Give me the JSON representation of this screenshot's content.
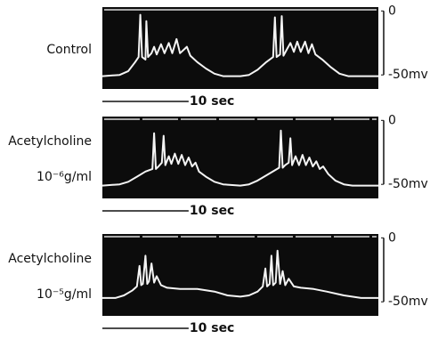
{
  "chart_data": [
    {
      "type": "line",
      "label": [
        "Control"
      ],
      "x": [
        0,
        2,
        3,
        3.8,
        4.2,
        4.4,
        4.6,
        5,
        5.1,
        5.3,
        5.7,
        6.0,
        6.3,
        6.8,
        7.2,
        7.7,
        8.1,
        8.6,
        9.0,
        9.5,
        9.8,
        10.2,
        11,
        12,
        13,
        14,
        16,
        17,
        18,
        19,
        19.8,
        20.0,
        20.2,
        20.6,
        20.8,
        21.0,
        21.4,
        21.8,
        22.2,
        22.6,
        23.0,
        23.5,
        23.9,
        24.3,
        24.7,
        25.5,
        26.5,
        27.5,
        28.5,
        32
      ],
      "series": [
        {
          "color": "#f4f4f4",
          "values": [
            -51,
            -50,
            -47,
            -40,
            -36,
            -3,
            -36,
            -38,
            -8,
            -36,
            -33,
            -28,
            -34,
            -26,
            -33,
            -25,
            -33,
            -22,
            -33,
            -30,
            -28,
            -35,
            -40,
            -45,
            -49,
            -51,
            -51,
            -50,
            -46,
            -40,
            -36,
            -5,
            -36,
            -34,
            -4,
            -35,
            -30,
            -25,
            -32,
            -24,
            -32,
            -24,
            -33,
            -26,
            -34,
            -38,
            -44,
            -49,
            -51,
            -51
          ]
        }
      ],
      "xlim": [
        0,
        32
      ],
      "ylim": [
        -61,
        3
      ],
      "yticks": [
        0,
        {
          "value": -50,
          "label": "-50mv"
        }
      ],
      "scale_bar": {
        "value": 10,
        "label": "10 sec"
      }
    },
    {
      "type": "line",
      "label": [
        "Acetylcholine",
        "10⁻⁶g/ml"
      ],
      "x": [
        0,
        2,
        3,
        4,
        5,
        5.8,
        6.0,
        6.2,
        6.5,
        6.9,
        7.1,
        7.3,
        7.7,
        8.0,
        8.4,
        8.8,
        9.2,
        9.6,
        10.0,
        10.4,
        10.8,
        11.2,
        12,
        13,
        14,
        16,
        17,
        18,
        19,
        20.0,
        20.5,
        20.7,
        20.9,
        21.2,
        21.6,
        21.8,
        22.0,
        22.4,
        22.8,
        23.2,
        23.6,
        24.0,
        24.4,
        24.8,
        25.2,
        25.6,
        26.2,
        27,
        28,
        29,
        32
      ],
      "series": [
        {
          "color": "#f4f4f4",
          "values": [
            -51,
            -50,
            -48,
            -44,
            -40,
            -38,
            -10,
            -38,
            -36,
            -33,
            -12,
            -35,
            -28,
            -34,
            -26,
            -34,
            -27,
            -35,
            -29,
            -36,
            -33,
            -40,
            -44,
            -48,
            -50,
            -51,
            -50,
            -47,
            -43,
            -39,
            -37,
            -8,
            -37,
            -35,
            -33,
            -14,
            -35,
            -28,
            -35,
            -27,
            -35,
            -29,
            -36,
            -32,
            -38,
            -36,
            -42,
            -47,
            -50,
            -51,
            -51
          ]
        }
      ],
      "xlim": [
        0,
        32
      ],
      "ylim": [
        -61,
        3
      ],
      "yticks": [
        0,
        {
          "value": -50,
          "label": "-50mv"
        }
      ],
      "scale_bar": {
        "value": 10,
        "label": "10 sec"
      }
    },
    {
      "type": "line",
      "label": [
        "Acetylcholine",
        "10⁻⁵g/ml"
      ],
      "x": [
        0,
        1.5,
        2.5,
        3.5,
        4.0,
        4.3,
        4.5,
        4.7,
        5.0,
        5.2,
        5.4,
        5.7,
        6.0,
        6.3,
        6.8,
        7.5,
        9,
        11,
        13,
        14.5,
        16,
        17,
        18,
        18.6,
        18.9,
        19.1,
        19.4,
        19.6,
        19.8,
        20.1,
        20.3,
        20.6,
        20.9,
        21.2,
        21.6,
        22.2,
        23,
        24.5,
        26,
        28,
        30,
        32
      ],
      "series": [
        {
          "color": "#f4f4f4",
          "values": [
            -47,
            -47,
            -45,
            -41,
            -38,
            -22,
            -37,
            -36,
            -14,
            -36,
            -34,
            -20,
            -35,
            -30,
            -37,
            -39,
            -40,
            -40,
            -42,
            -45,
            -46,
            -45,
            -42,
            -38,
            -24,
            -38,
            -36,
            -14,
            -37,
            -35,
            -10,
            -36,
            -26,
            -37,
            -32,
            -38,
            -39,
            -40,
            -42,
            -45,
            -47,
            -47
          ]
        }
      ],
      "xlim": [
        0,
        32
      ],
      "ylim": [
        -61,
        3
      ],
      "yticks": [
        0,
        {
          "value": -50,
          "label": "-50mv"
        }
      ],
      "scale_bar": {
        "value": 10,
        "label": "10 sec"
      }
    }
  ]
}
